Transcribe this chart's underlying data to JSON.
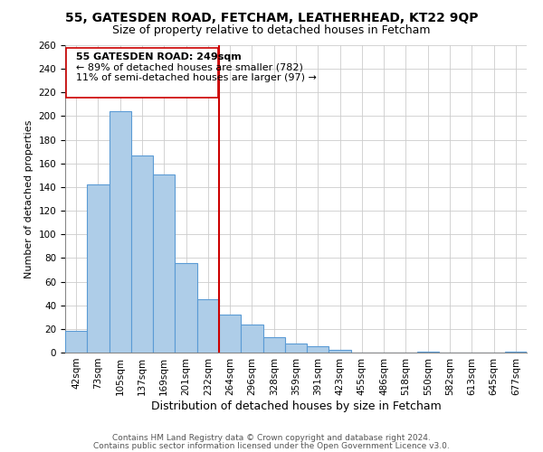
{
  "title1": "55, GATESDEN ROAD, FETCHAM, LEATHERHEAD, KT22 9QP",
  "title2": "Size of property relative to detached houses in Fetcham",
  "xlabel": "Distribution of detached houses by size in Fetcham",
  "ylabel": "Number of detached properties",
  "bin_labels": [
    "42sqm",
    "73sqm",
    "105sqm",
    "137sqm",
    "169sqm",
    "201sqm",
    "232sqm",
    "264sqm",
    "296sqm",
    "328sqm",
    "359sqm",
    "391sqm",
    "423sqm",
    "455sqm",
    "486sqm",
    "518sqm",
    "550sqm",
    "582sqm",
    "613sqm",
    "645sqm",
    "677sqm"
  ],
  "bar_heights": [
    18,
    142,
    204,
    167,
    151,
    76,
    45,
    32,
    24,
    13,
    8,
    5,
    2,
    0,
    0,
    0,
    1,
    0,
    0,
    0,
    1
  ],
  "bar_color": "#aecde8",
  "bar_edge_color": "#5b9bd5",
  "reference_line_label": "55 GATESDEN ROAD: 249sqm",
  "annotation_line1": "← 89% of detached houses are smaller (782)",
  "annotation_line2": "11% of semi-detached houses are larger (97) →",
  "vline_color": "#cc0000",
  "ylim": [
    0,
    260
  ],
  "yticks": [
    0,
    20,
    40,
    60,
    80,
    100,
    120,
    140,
    160,
    180,
    200,
    220,
    240,
    260
  ],
  "footnote1": "Contains HM Land Registry data © Crown copyright and database right 2024.",
  "footnote2": "Contains public sector information licensed under the Open Government Licence v3.0.",
  "background_color": "#ffffff",
  "grid_color": "#cccccc",
  "title1_fontsize": 10,
  "title2_fontsize": 9,
  "xlabel_fontsize": 9,
  "ylabel_fontsize": 8,
  "tick_fontsize": 7.5,
  "annot_fontsize": 8,
  "footnote_fontsize": 6.5
}
